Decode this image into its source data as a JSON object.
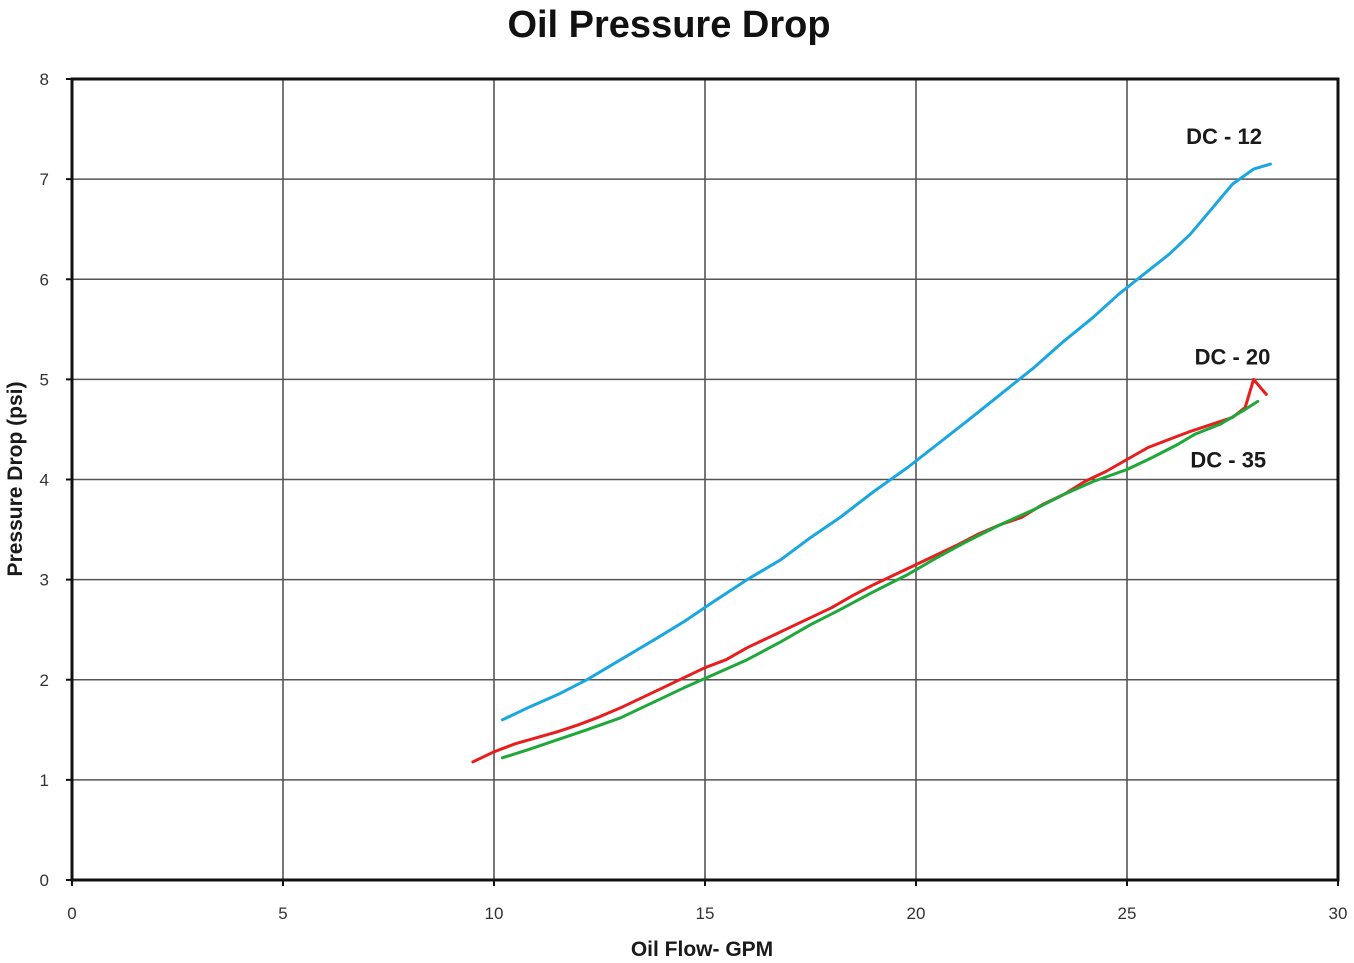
{
  "chart_data": {
    "type": "line",
    "title": "Oil Pressure Drop",
    "xlabel": "Oil Flow- GPM",
    "ylabel": "Pressure Drop (psi)",
    "xlim": [
      0,
      30
    ],
    "ylim": [
      0,
      8
    ],
    "xticks": [
      0,
      5,
      10,
      15,
      20,
      25,
      30
    ],
    "yticks": [
      0,
      1,
      2,
      3,
      4,
      5,
      6,
      7,
      8
    ],
    "grid": true,
    "legend": "none",
    "series": [
      {
        "name": "DC - 12",
        "color": "#1aa6e0",
        "x": [
          10.2,
          10.8,
          11.5,
          12.2,
          13.0,
          13.8,
          14.5,
          15.2,
          16.0,
          16.8,
          17.5,
          18.2,
          19.0,
          19.8,
          20.5,
          21.2,
          22.0,
          22.8,
          23.5,
          24.2,
          24.8,
          25.4,
          26.0,
          26.5,
          27.0,
          27.5,
          28.0,
          28.4
        ],
        "y": [
          1.6,
          1.72,
          1.85,
          2.0,
          2.2,
          2.4,
          2.58,
          2.78,
          3.0,
          3.2,
          3.42,
          3.62,
          3.88,
          4.12,
          4.35,
          4.58,
          4.85,
          5.12,
          5.38,
          5.62,
          5.85,
          6.05,
          6.25,
          6.45,
          6.7,
          6.95,
          7.1,
          7.15
        ]
      },
      {
        "name": "DC - 20",
        "color": "#e81e1e",
        "x": [
          9.5,
          10.0,
          10.5,
          11.0,
          11.5,
          12.0,
          12.5,
          13.0,
          13.5,
          14.0,
          14.5,
          15.0,
          15.5,
          16.0,
          16.5,
          17.0,
          17.5,
          18.0,
          18.5,
          19.0,
          19.5,
          20.0,
          20.5,
          21.0,
          21.5,
          22.0,
          22.5,
          23.0,
          23.5,
          24.0,
          24.5,
          25.0,
          25.5,
          26.0,
          26.5,
          27.0,
          27.5,
          27.8,
          28.0,
          28.2,
          28.3
        ],
        "y": [
          1.18,
          1.28,
          1.36,
          1.42,
          1.48,
          1.55,
          1.63,
          1.72,
          1.82,
          1.92,
          2.02,
          2.12,
          2.2,
          2.32,
          2.42,
          2.52,
          2.62,
          2.72,
          2.84,
          2.95,
          3.05,
          3.15,
          3.25,
          3.35,
          3.46,
          3.55,
          3.62,
          3.75,
          3.85,
          3.98,
          4.08,
          4.2,
          4.32,
          4.4,
          4.48,
          4.55,
          4.62,
          4.72,
          5.0,
          4.9,
          4.85
        ]
      },
      {
        "name": "DC - 35",
        "color": "#1ea83a",
        "x": [
          10.2,
          10.8,
          11.5,
          12.2,
          13.0,
          13.8,
          14.5,
          15.2,
          16.0,
          16.8,
          17.5,
          18.2,
          19.0,
          19.8,
          20.5,
          21.2,
          22.0,
          22.8,
          23.5,
          24.2,
          25.0,
          25.6,
          26.2,
          26.6,
          27.2,
          27.8,
          28.1
        ],
        "y": [
          1.22,
          1.3,
          1.4,
          1.5,
          1.62,
          1.78,
          1.92,
          2.05,
          2.2,
          2.38,
          2.55,
          2.7,
          2.88,
          3.05,
          3.22,
          3.38,
          3.55,
          3.7,
          3.85,
          3.98,
          4.1,
          4.22,
          4.35,
          4.45,
          4.55,
          4.7,
          4.78
        ]
      }
    ],
    "annotations": [
      {
        "text": "DC - 12",
        "x": 27.3,
        "y": 7.35
      },
      {
        "text": "DC - 20",
        "x": 27.5,
        "y": 5.15
      },
      {
        "text": "DC - 35",
        "x": 27.4,
        "y": 4.12
      }
    ]
  }
}
